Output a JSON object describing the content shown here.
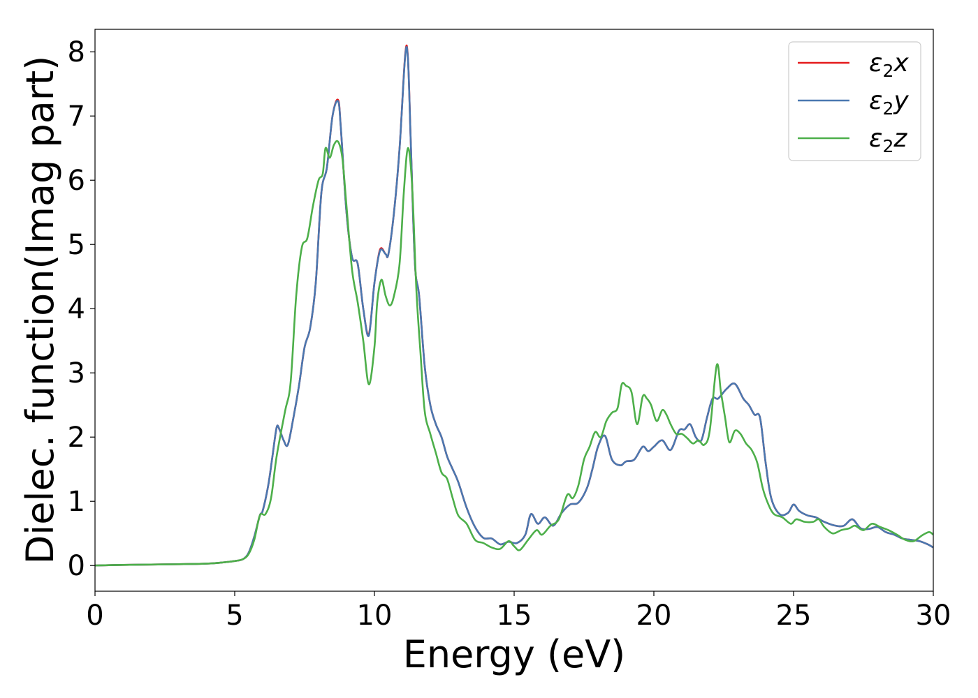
{
  "chart_data": {
    "type": "line",
    "xlabel": "Energy (eV)",
    "ylabel": "Dielec. function(Imag part)",
    "xlim": [
      0,
      30
    ],
    "ylim": [
      -0.4,
      8.35
    ],
    "xticks": [
      0,
      5,
      10,
      15,
      20,
      25,
      30
    ],
    "yticks": [
      0,
      1,
      2,
      3,
      4,
      5,
      6,
      7,
      8
    ],
    "grid": false,
    "legend_position": "top-right",
    "series": [
      {
        "name": "ε2x",
        "legend_base": "ε",
        "legend_sub": "2",
        "legend_suffix": "x",
        "color": "#e41a1c",
        "x": [
          0,
          1,
          2,
          3,
          4,
          4.5,
          5,
          5.3,
          5.5,
          5.7,
          5.9,
          6.0,
          6.2,
          6.35,
          6.5,
          6.6,
          6.75,
          6.9,
          7.1,
          7.3,
          7.5,
          7.7,
          7.9,
          8.1,
          8.3,
          8.5,
          8.7,
          8.8,
          9.0,
          9.2,
          9.4,
          9.6,
          9.8,
          10.0,
          10.2,
          10.4,
          10.5,
          10.7,
          10.9,
          11.1,
          11.2,
          11.3,
          11.45,
          11.6,
          11.8,
          12.0,
          12.2,
          12.4,
          12.6,
          12.8,
          13.0,
          13.3,
          13.6,
          13.9,
          14.2,
          14.5,
          14.8,
          15.1,
          15.4,
          15.6,
          15.85,
          16.1,
          16.4,
          16.7,
          17.0,
          17.3,
          17.6,
          17.8,
          18.0,
          18.25,
          18.5,
          18.8,
          19.0,
          19.3,
          19.6,
          19.8,
          20.0,
          20.3,
          20.6,
          20.9,
          21.1,
          21.3,
          21.5,
          21.7,
          21.9,
          22.1,
          22.3,
          22.6,
          22.9,
          23.2,
          23.4,
          23.6,
          23.8,
          24.0,
          24.2,
          24.5,
          24.8,
          25.0,
          25.2,
          25.5,
          25.8,
          26.1,
          26.5,
          26.8,
          27.1,
          27.4,
          27.7,
          28.0,
          28.3,
          28.6,
          28.9,
          29.2,
          29.5,
          29.8,
          30.0
        ],
        "values": [
          0.0,
          0.01,
          0.015,
          0.02,
          0.03,
          0.045,
          0.07,
          0.1,
          0.2,
          0.45,
          0.78,
          0.85,
          1.25,
          1.7,
          2.15,
          2.12,
          1.95,
          1.88,
          2.3,
          2.8,
          3.4,
          3.7,
          4.4,
          5.8,
          6.2,
          7.0,
          7.25,
          6.8,
          5.5,
          4.8,
          4.7,
          4.0,
          3.6,
          4.4,
          4.92,
          4.85,
          4.85,
          5.5,
          6.5,
          7.95,
          7.9,
          6.6,
          4.7,
          4.2,
          3.1,
          2.5,
          2.2,
          2.0,
          1.7,
          1.5,
          1.3,
          0.9,
          0.6,
          0.43,
          0.42,
          0.33,
          0.37,
          0.35,
          0.48,
          0.8,
          0.65,
          0.75,
          0.62,
          0.82,
          0.95,
          0.98,
          1.2,
          1.5,
          1.85,
          2.02,
          1.65,
          1.56,
          1.62,
          1.65,
          1.85,
          1.78,
          1.85,
          1.95,
          1.8,
          2.1,
          2.12,
          2.2,
          2.0,
          1.95,
          2.3,
          2.6,
          2.6,
          2.75,
          2.83,
          2.6,
          2.5,
          2.35,
          2.3,
          1.6,
          1.05,
          0.8,
          0.82,
          0.95,
          0.85,
          0.78,
          0.75,
          0.68,
          0.62,
          0.62,
          0.72,
          0.58,
          0.57,
          0.6,
          0.52,
          0.48,
          0.42,
          0.4,
          0.38,
          0.33,
          0.28
        ]
      },
      {
        "name": "ε2y",
        "legend_base": "ε",
        "legend_sub": "2",
        "legend_suffix": "y",
        "color": "#4a78b0",
        "x": [
          0,
          1,
          2,
          3,
          4,
          4.5,
          5,
          5.3,
          5.5,
          5.7,
          5.9,
          6.0,
          6.2,
          6.35,
          6.5,
          6.6,
          6.75,
          6.9,
          7.1,
          7.3,
          7.5,
          7.7,
          7.9,
          8.1,
          8.3,
          8.5,
          8.7,
          8.8,
          9.0,
          9.2,
          9.4,
          9.6,
          9.8,
          10.0,
          10.2,
          10.4,
          10.5,
          10.7,
          10.9,
          11.1,
          11.2,
          11.3,
          11.45,
          11.6,
          11.8,
          12.0,
          12.2,
          12.4,
          12.6,
          12.8,
          13.0,
          13.3,
          13.6,
          13.9,
          14.2,
          14.5,
          14.8,
          15.1,
          15.4,
          15.6,
          15.85,
          16.1,
          16.4,
          16.7,
          17.0,
          17.3,
          17.6,
          17.8,
          18.0,
          18.25,
          18.5,
          18.8,
          19.0,
          19.3,
          19.6,
          19.8,
          20.0,
          20.3,
          20.6,
          20.9,
          21.1,
          21.3,
          21.5,
          21.7,
          21.9,
          22.1,
          22.3,
          22.6,
          22.9,
          23.2,
          23.4,
          23.6,
          23.8,
          24.0,
          24.2,
          24.5,
          24.8,
          25.0,
          25.2,
          25.5,
          25.8,
          26.1,
          26.5,
          26.8,
          27.1,
          27.4,
          27.7,
          28.0,
          28.3,
          28.6,
          28.9,
          29.2,
          29.5,
          29.8,
          30.0
        ],
        "values": [
          0.0,
          0.01,
          0.015,
          0.02,
          0.03,
          0.045,
          0.07,
          0.1,
          0.2,
          0.45,
          0.78,
          0.85,
          1.25,
          1.7,
          2.15,
          2.12,
          1.95,
          1.88,
          2.3,
          2.8,
          3.4,
          3.7,
          4.4,
          5.8,
          6.2,
          7.0,
          7.23,
          6.8,
          5.5,
          4.8,
          4.7,
          4.0,
          3.58,
          4.4,
          4.9,
          4.85,
          4.85,
          5.5,
          6.5,
          7.93,
          7.88,
          6.6,
          4.7,
          4.2,
          3.1,
          2.5,
          2.2,
          2.0,
          1.7,
          1.5,
          1.3,
          0.9,
          0.6,
          0.43,
          0.42,
          0.33,
          0.37,
          0.35,
          0.48,
          0.8,
          0.65,
          0.75,
          0.62,
          0.82,
          0.95,
          0.98,
          1.2,
          1.5,
          1.85,
          2.02,
          1.65,
          1.56,
          1.62,
          1.65,
          1.85,
          1.78,
          1.85,
          1.95,
          1.8,
          2.1,
          2.12,
          2.2,
          2.0,
          1.95,
          2.3,
          2.6,
          2.6,
          2.75,
          2.83,
          2.6,
          2.5,
          2.35,
          2.3,
          1.6,
          1.05,
          0.8,
          0.82,
          0.95,
          0.85,
          0.78,
          0.75,
          0.68,
          0.62,
          0.62,
          0.72,
          0.58,
          0.57,
          0.6,
          0.52,
          0.48,
          0.42,
          0.4,
          0.38,
          0.33,
          0.28
        ]
      },
      {
        "name": "ε2z",
        "legend_base": "ε",
        "legend_sub": "2",
        "legend_suffix": "z",
        "color": "#4daf4a",
        "x": [
          0,
          1,
          2,
          3,
          4,
          4.5,
          5,
          5.3,
          5.5,
          5.7,
          5.9,
          6.1,
          6.3,
          6.5,
          6.8,
          7.0,
          7.2,
          7.4,
          7.6,
          7.8,
          8.0,
          8.15,
          8.25,
          8.4,
          8.55,
          8.7,
          8.85,
          9.0,
          9.2,
          9.4,
          9.6,
          9.8,
          10.0,
          10.1,
          10.25,
          10.4,
          10.55,
          10.7,
          10.9,
          11.05,
          11.2,
          11.35,
          11.5,
          11.65,
          11.8,
          12.0,
          12.2,
          12.4,
          12.6,
          12.8,
          13.0,
          13.3,
          13.6,
          13.9,
          14.2,
          14.5,
          14.8,
          15.0,
          15.2,
          15.5,
          15.8,
          16.0,
          16.3,
          16.6,
          16.9,
          17.1,
          17.3,
          17.5,
          17.7,
          17.9,
          18.1,
          18.3,
          18.5,
          18.7,
          18.85,
          19.0,
          19.2,
          19.4,
          19.6,
          19.75,
          19.9,
          20.1,
          20.3,
          20.45,
          20.6,
          20.8,
          21.0,
          21.2,
          21.4,
          21.6,
          21.8,
          22.0,
          22.25,
          22.4,
          22.55,
          22.7,
          22.9,
          23.1,
          23.3,
          23.5,
          23.7,
          23.9,
          24.1,
          24.3,
          24.6,
          24.9,
          25.1,
          25.4,
          25.7,
          25.9,
          26.1,
          26.4,
          26.7,
          27.0,
          27.2,
          27.5,
          27.8,
          28.1,
          28.4,
          28.7,
          29.0,
          29.3,
          29.6,
          29.85,
          30.0
        ],
        "values": [
          0.0,
          0.01,
          0.015,
          0.02,
          0.03,
          0.045,
          0.07,
          0.1,
          0.18,
          0.4,
          0.78,
          0.8,
          1.05,
          1.7,
          2.4,
          2.85,
          4.2,
          4.95,
          5.1,
          5.6,
          6.0,
          6.1,
          6.5,
          6.35,
          6.55,
          6.6,
          6.35,
          5.6,
          4.6,
          4.1,
          3.5,
          2.82,
          3.4,
          4.1,
          4.45,
          4.2,
          4.05,
          4.2,
          4.7,
          5.8,
          6.5,
          5.9,
          4.3,
          3.3,
          2.4,
          2.05,
          1.75,
          1.45,
          1.35,
          1.05,
          0.78,
          0.65,
          0.4,
          0.35,
          0.28,
          0.26,
          0.38,
          0.3,
          0.24,
          0.4,
          0.55,
          0.48,
          0.62,
          0.72,
          1.1,
          1.05,
          1.25,
          1.65,
          1.85,
          2.08,
          2.0,
          2.25,
          2.38,
          2.45,
          2.82,
          2.8,
          2.7,
          2.2,
          2.63,
          2.6,
          2.5,
          2.25,
          2.42,
          2.35,
          2.2,
          2.05,
          2.05,
          1.98,
          1.9,
          1.95,
          1.88,
          2.1,
          3.12,
          2.7,
          2.3,
          1.92,
          2.1,
          2.05,
          1.9,
          1.8,
          1.6,
          1.2,
          0.95,
          0.8,
          0.75,
          0.65,
          0.72,
          0.68,
          0.68,
          0.72,
          0.6,
          0.5,
          0.55,
          0.58,
          0.62,
          0.55,
          0.65,
          0.6,
          0.55,
          0.48,
          0.4,
          0.38,
          0.47,
          0.52,
          0.48
        ]
      }
    ]
  }
}
